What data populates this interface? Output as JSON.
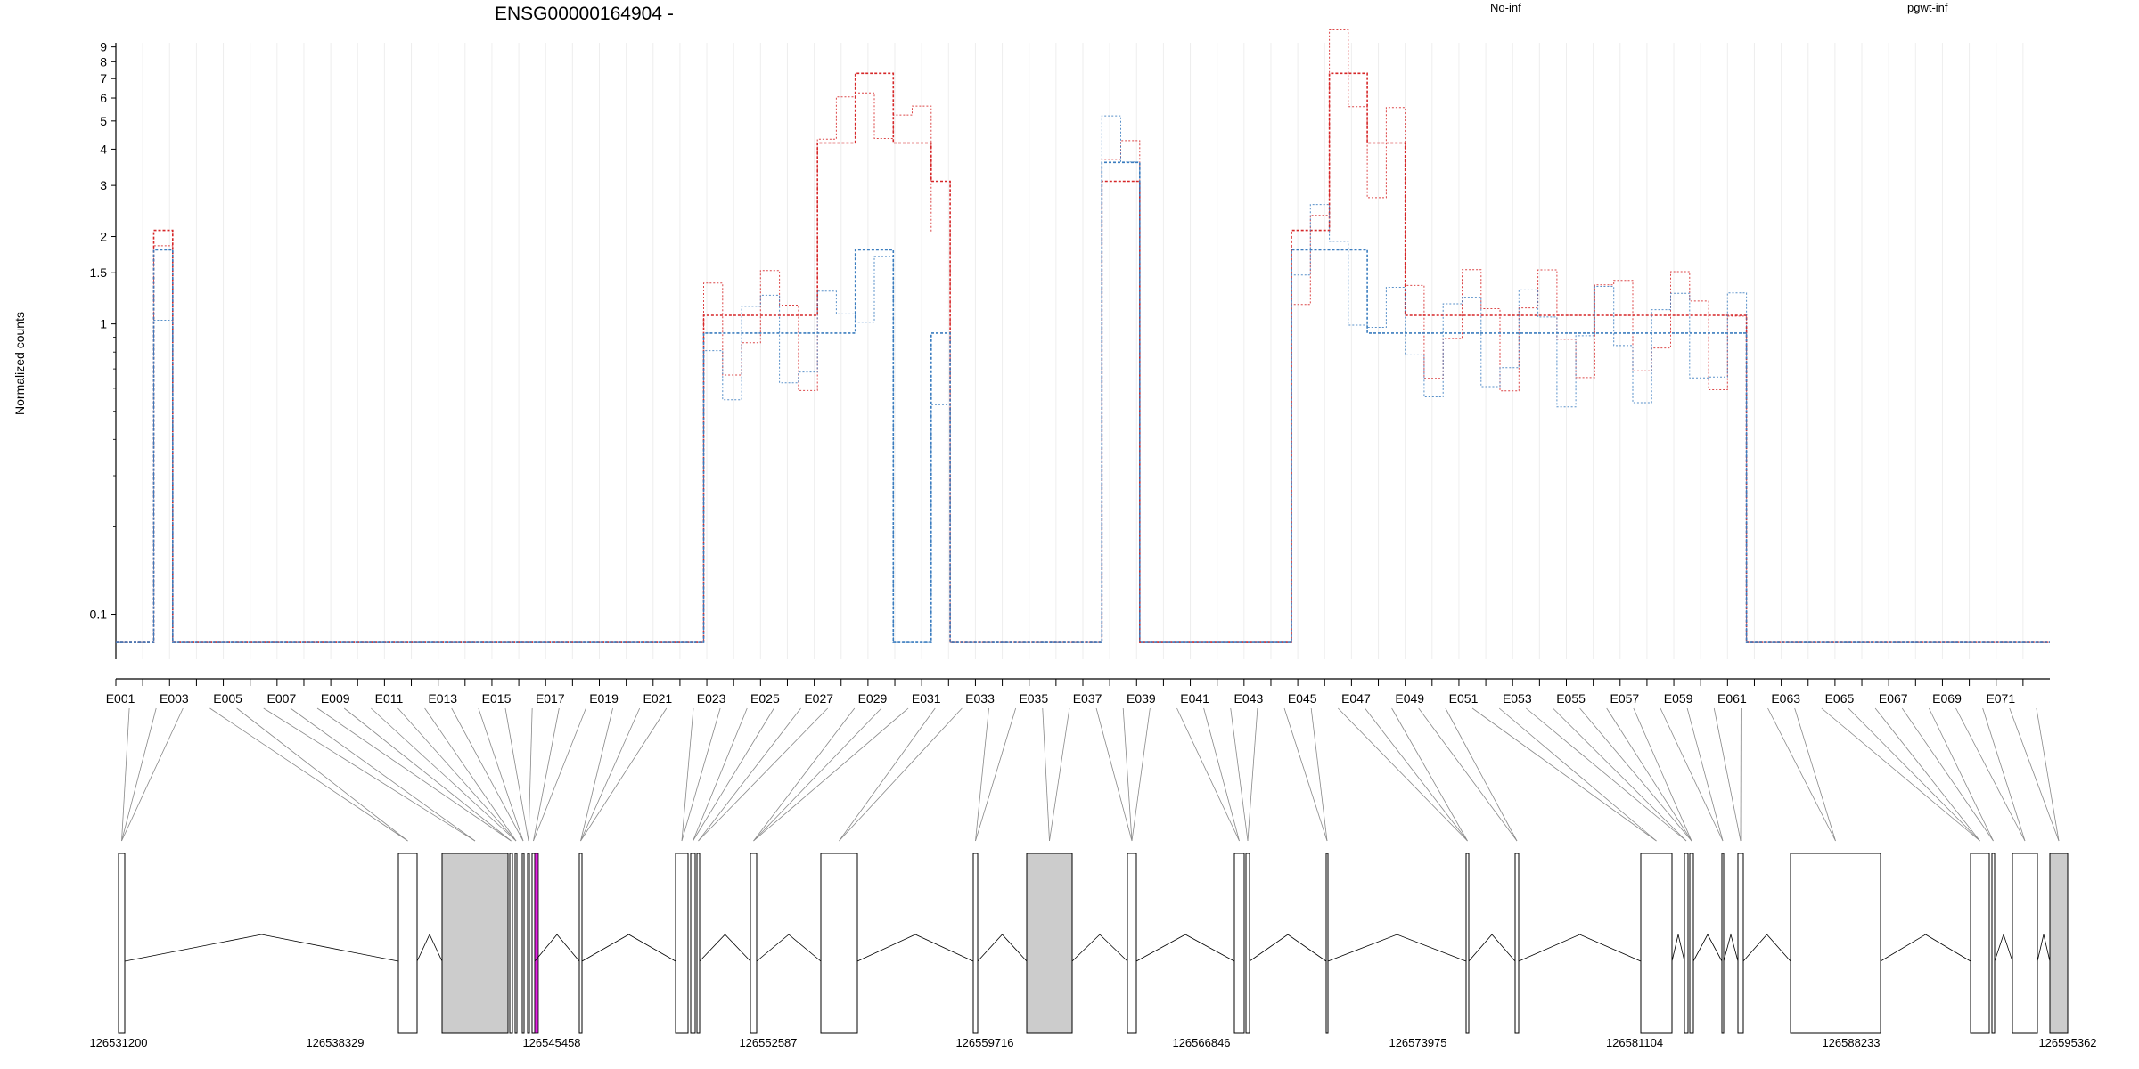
{
  "chart_data": {
    "type": "line",
    "title": "ENSG00000164904 -",
    "ylabel": "Normalized counts",
    "y_scale": "log",
    "ylim": [
      0.07,
      9.3
    ],
    "y_ticks": [
      {
        "value": 0.1,
        "label": "0.1"
      },
      {
        "value": 1,
        "label": "1"
      },
      {
        "value": 1.5,
        "label": "1.5"
      },
      {
        "value": 2,
        "label": "2"
      },
      {
        "value": 3,
        "label": "3"
      },
      {
        "value": 4,
        "label": "4"
      },
      {
        "value": 5,
        "label": "5"
      },
      {
        "value": 6,
        "label": "6"
      },
      {
        "value": 7,
        "label": "7"
      },
      {
        "value": 8,
        "label": "8"
      },
      {
        "value": 9,
        "label": "9"
      }
    ],
    "grid": true,
    "legend": [
      {
        "label": "No-inf",
        "color": "#d62728"
      },
      {
        "label": "pgwt-inf",
        "color": "#3b7dbf"
      }
    ],
    "legend_position": "top-right",
    "x_ticks": [
      "E001",
      "E003",
      "E005",
      "E007",
      "E009",
      "E011",
      "E013",
      "E015",
      "E017",
      "E019",
      "E021",
      "E023",
      "E025",
      "E027",
      "E029",
      "E031",
      "E033",
      "E035",
      "E037",
      "E039",
      "E041",
      "E043",
      "E045",
      "E047",
      "E049",
      "E051",
      "E053",
      "E055",
      "E057",
      "E059",
      "E061",
      "E063",
      "E065",
      "E067",
      "E069",
      "E071"
    ],
    "exon_count": 72,
    "series": [
      {
        "group": "No-inf",
        "style": "mean",
        "color": "#d62728",
        "values": [
          0.08,
          0.08,
          2.1,
          0.08,
          0.08,
          0.08,
          0.08,
          0.08,
          0.08,
          0.08,
          0.08,
          0.08,
          0.08,
          0.08,
          0.08,
          0.08,
          0.08,
          0.08,
          0.08,
          0.08,
          0.08,
          0.08,
          0.08,
          0.08,
          0.08,
          0.08,
          0.08,
          0.08,
          0.08,
          0.08,
          0.08,
          1.07,
          1.07,
          1.07,
          1.07,
          1.07,
          1.07,
          4.2,
          4.2,
          7.3,
          7.3,
          4.2,
          4.2,
          3.1,
          0.08,
          0.08,
          0.08,
          0.08,
          0.08,
          0.08,
          0.08,
          0.08,
          3.1,
          3.1,
          0.08,
          0.08,
          0.08,
          0.08,
          0.08,
          0.08,
          0.08,
          0.08,
          2.1,
          2.1,
          7.3,
          7.3,
          4.2,
          4.2,
          1.07,
          1.07,
          1.07,
          1.07,
          1.07,
          1.07,
          1.07,
          1.07,
          1.07,
          1.07,
          1.07,
          1.07,
          1.07,
          1.07,
          1.07,
          1.07,
          1.07,
          1.07,
          0.08,
          0.08,
          0.08,
          0.08,
          0.08,
          0.08,
          0.08,
          0.08,
          0.08,
          0.08,
          0.08,
          0.08,
          0.08,
          0.08,
          0.08,
          0.08
        ]
      },
      {
        "group": "pgwt-inf",
        "style": "mean",
        "color": "#3b7dbf",
        "values": [
          0.08,
          0.08,
          1.8,
          0.08,
          0.08,
          0.08,
          0.08,
          0.08,
          0.08,
          0.08,
          0.08,
          0.08,
          0.08,
          0.08,
          0.08,
          0.08,
          0.08,
          0.08,
          0.08,
          0.08,
          0.08,
          0.08,
          0.08,
          0.08,
          0.08,
          0.08,
          0.08,
          0.08,
          0.08,
          0.08,
          0.08,
          0.93,
          0.93,
          0.93,
          0.93,
          0.93,
          0.93,
          0.93,
          0.93,
          1.8,
          1.8,
          0.08,
          0.08,
          0.93,
          0.08,
          0.08,
          0.08,
          0.08,
          0.08,
          0.08,
          0.08,
          0.08,
          3.6,
          3.6,
          0.08,
          0.08,
          0.08,
          0.08,
          0.08,
          0.08,
          0.08,
          0.08,
          1.8,
          1.8,
          1.8,
          1.8,
          0.93,
          0.93,
          0.93,
          0.93,
          0.93,
          0.93,
          0.93,
          0.93,
          0.93,
          0.93,
          0.93,
          0.93,
          0.93,
          0.93,
          0.93,
          0.93,
          0.93,
          0.93,
          0.93,
          0.93,
          0.08,
          0.08,
          0.08,
          0.08,
          0.08,
          0.08,
          0.08,
          0.08,
          0.08,
          0.08,
          0.08,
          0.08,
          0.08,
          0.08,
          0.08,
          0.08
        ]
      }
    ],
    "annotation_coordinates": {
      "ticks": [
        "126531200",
        "126538329",
        "126545458",
        "126552587",
        "126559716",
        "126566846",
        "126573975",
        "126581104",
        "126588233",
        "126595362"
      ],
      "range": [
        126531200,
        126595362
      ]
    }
  }
}
